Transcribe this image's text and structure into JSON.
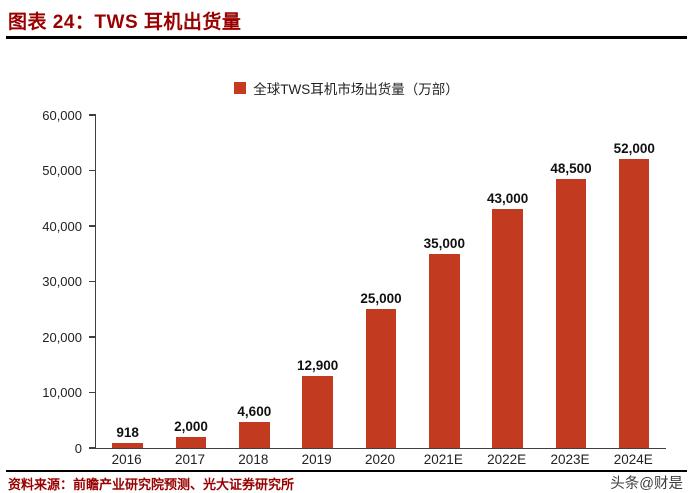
{
  "header": {
    "title": "图表 24：TWS 耳机出货量"
  },
  "chart_data": {
    "type": "bar",
    "title": "图表 24：TWS 耳机出货量",
    "legend": [
      "全球TWS耳机市场出货量（万部）"
    ],
    "legend_position": "top",
    "categories": [
      "2016",
      "2017",
      "2018",
      "2019",
      "2020",
      "2021E",
      "2022E",
      "2023E",
      "2024E"
    ],
    "values": [
      918,
      2000,
      4600,
      12900,
      25000,
      35000,
      43000,
      48500,
      52000
    ],
    "value_labels": [
      "918",
      "2,000",
      "4,600",
      "12,900",
      "25,000",
      "35,000",
      "43,000",
      "48,500",
      "52,000"
    ],
    "xlabel": "",
    "ylabel": "",
    "ylim": [
      0,
      60000
    ],
    "yticks": [
      "0",
      "10,000",
      "20,000",
      "30,000",
      "40,000",
      "50,000",
      "60,000"
    ],
    "grid": false,
    "bar_color": "#c23a20"
  },
  "footer": {
    "source": "资料来源：前瞻产业研究院预测、光大证券研究所",
    "watermark": "头条@财是"
  }
}
